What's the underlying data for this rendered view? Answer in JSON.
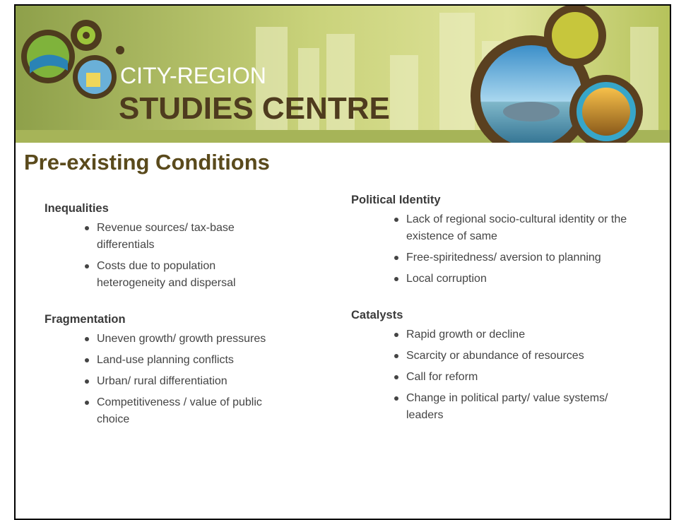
{
  "header": {
    "logo_line1": "CITY-REGION",
    "logo_line2": "STUDIES CENTRE"
  },
  "title": "Pre-existing Conditions",
  "columns": [
    {
      "sections": [
        {
          "heading": "Inequalities",
          "items": [
            "Revenue sources/ tax-base differentials",
            "Costs due to population heterogeneity and dispersal"
          ]
        },
        {
          "heading": "Fragmentation",
          "items": [
            "Uneven growth/ growth pressures",
            "Land-use planning conflicts",
            "Urban/ rural differentiation",
            "Competitiveness / value of public choice"
          ]
        }
      ]
    },
    {
      "sections": [
        {
          "heading": "Political Identity",
          "items": [
            "Lack of regional socio-cultural identity or the existence of same",
            "Free-spiritedness/ aversion to planning",
            "Local corruption"
          ]
        },
        {
          "heading": "Catalysts",
          "items": [
            "Rapid growth or decline",
            "Scarcity or abundance of resources",
            "Call for reform",
            "Change in political party/ value systems/ leaders"
          ]
        }
      ]
    }
  ]
}
